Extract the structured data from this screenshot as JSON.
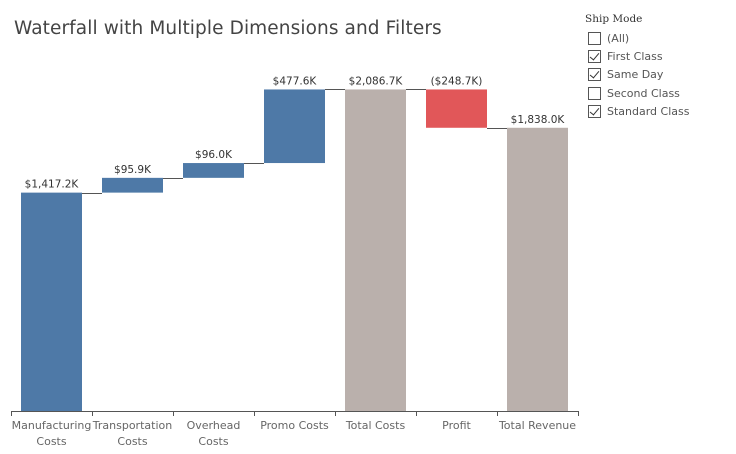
{
  "title": "Waterfall with Multiple Dimensions and Filters",
  "filter": {
    "title": "Ship Mode",
    "options": [
      {
        "label": "(All)",
        "checked": false
      },
      {
        "label": "First Class",
        "checked": true
      },
      {
        "label": "Same Day",
        "checked": true
      },
      {
        "label": "Second Class",
        "checked": false
      },
      {
        "label": "Standard Class",
        "checked": true
      }
    ]
  },
  "chart_data": {
    "type": "waterfall",
    "title": "Waterfall with Multiple Dimensions and Filters",
    "xlabel": "",
    "ylabel": "",
    "ylim": [
      0,
      2200
    ],
    "categories": [
      [
        "Manufacturing",
        "Costs"
      ],
      [
        "Transportation",
        "Costs"
      ],
      [
        "Overhead",
        "Costs"
      ],
      [
        "Promo Costs"
      ],
      [
        "Total Costs"
      ],
      [
        "Profit"
      ],
      [
        "Total Revenue"
      ]
    ],
    "bars": [
      {
        "start": 0,
        "end": 1417.2,
        "label": "$1,417.2K",
        "kind": "cost"
      },
      {
        "start": 1417.2,
        "end": 1513.1,
        "label": "$95.9K",
        "kind": "cost"
      },
      {
        "start": 1513.1,
        "end": 1609.1,
        "label": "$96.0K",
        "kind": "cost"
      },
      {
        "start": 1609.1,
        "end": 2086.7,
        "label": "$477.6K",
        "kind": "cost"
      },
      {
        "start": 0,
        "end": 2086.7,
        "label": "$2,086.7K",
        "kind": "total"
      },
      {
        "start": 2086.7,
        "end": 1838.0,
        "label": "($248.7K)",
        "kind": "negative"
      },
      {
        "start": 0,
        "end": 1838.0,
        "label": "$1,838.0K",
        "kind": "total"
      }
    ],
    "colors": {
      "cost": "#4e79a7",
      "total": "#bab0ac",
      "negative": "#e15759",
      "connector": "#555555",
      "axis": "#555555"
    },
    "grid": false,
    "legend": "none"
  }
}
